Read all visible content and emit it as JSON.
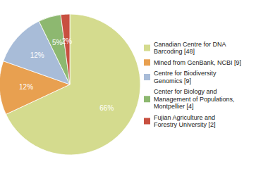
{
  "chart_data": {
    "type": "pie",
    "categories": [
      "Canadian Centre for DNA\nBarcoding [48]",
      "Mined from GenBank, NCBI [9]",
      "Centre for Biodiversity\nGenomics [9]",
      "Center for Biology and\nManagement of Populations,\nMontpellier [4]",
      "Fujian Agriculture and\nForestry University [2]"
    ],
    "values": [
      66,
      12,
      12,
      5,
      2
    ],
    "value_labels": [
      "66%",
      "12%",
      "12%",
      "5%",
      "2%"
    ],
    "colors": [
      "#d4db8e",
      "#e8a050",
      "#a8bcd8",
      "#8db870",
      "#c85040"
    ],
    "data_labels": true,
    "legend": "right"
  }
}
